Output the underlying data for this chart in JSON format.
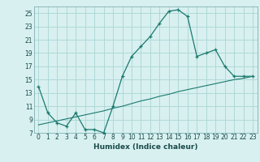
{
  "xlabel": "Humidex (Indice chaleur)",
  "bg_color": "#d8f0f0",
  "grid_color": "#b0d8d8",
  "line_color": "#1a7a6e",
  "xlim": [
    -0.5,
    23.5
  ],
  "ylim": [
    7,
    26
  ],
  "xticks": [
    0,
    1,
    2,
    3,
    4,
    5,
    6,
    7,
    8,
    9,
    10,
    11,
    12,
    13,
    14,
    15,
    16,
    17,
    18,
    19,
    20,
    21,
    22,
    23
  ],
  "yticks": [
    7,
    9,
    11,
    13,
    15,
    17,
    19,
    21,
    23,
    25
  ],
  "curve1_x": [
    0,
    1,
    2,
    3,
    4,
    5,
    6,
    7,
    8,
    9,
    10,
    11,
    12,
    13,
    14,
    15,
    16,
    17,
    18,
    19,
    20,
    21,
    22,
    23
  ],
  "curve1_y": [
    14,
    10,
    8.5,
    8,
    10,
    7.5,
    7.5,
    7,
    11,
    15.5,
    18.5,
    20,
    21.5,
    23.5,
    25.3,
    25.5,
    24.5,
    18.5,
    19,
    19.5,
    17,
    15.5,
    15.5,
    15.5
  ],
  "curve2_x": [
    0,
    1,
    2,
    3,
    4,
    5,
    6,
    7,
    8,
    9,
    10,
    11,
    12,
    13,
    14,
    15,
    16,
    17,
    18,
    19,
    20,
    21,
    22,
    23
  ],
  "curve2_y": [
    8.2,
    8.5,
    8.8,
    9.1,
    9.4,
    9.7,
    10.0,
    10.3,
    10.7,
    11.0,
    11.4,
    11.8,
    12.1,
    12.5,
    12.8,
    13.2,
    13.5,
    13.8,
    14.1,
    14.4,
    14.7,
    15.0,
    15.2,
    15.5
  ]
}
